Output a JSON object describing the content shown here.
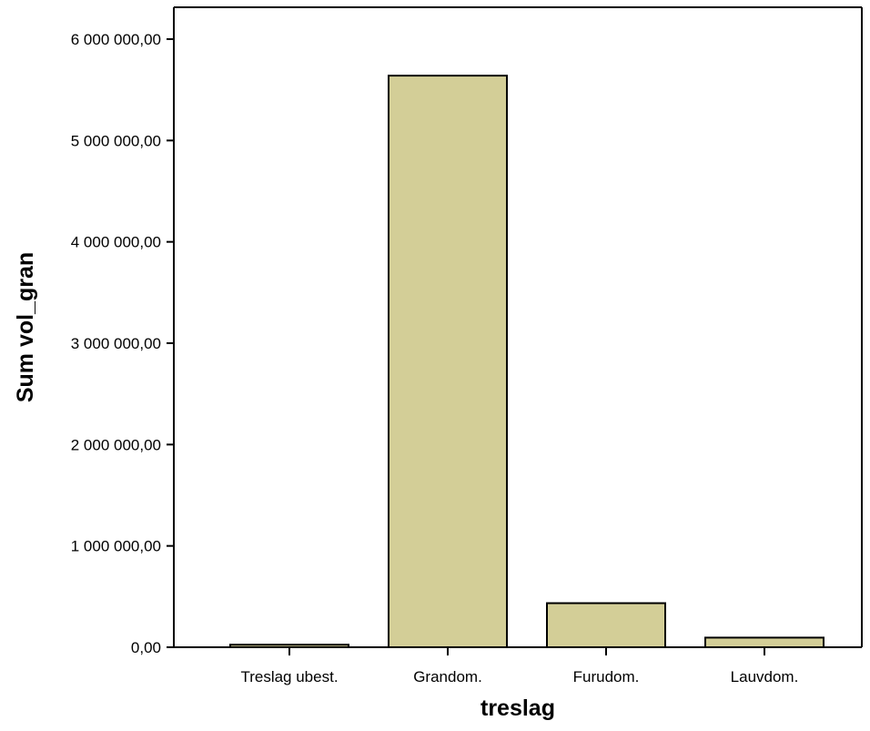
{
  "chart_data": {
    "type": "bar",
    "title": "",
    "xlabel": "treslag",
    "ylabel": "Sum vol_gran",
    "categories": [
      "Treslag ubest.",
      "Grandom.",
      "Furudom.",
      "Lauvdom."
    ],
    "values": [
      25000,
      5640000,
      435000,
      95000
    ],
    "ylim": [
      0,
      6000000
    ],
    "yticks": [
      0,
      1000000,
      2000000,
      3000000,
      4000000,
      5000000,
      6000000
    ],
    "ytick_labels": [
      "0,00",
      "1 000 000,00",
      "2 000 000,00",
      "3 000 000,00",
      "4 000 000,00",
      "5 000 000,00",
      "6 000 000,00"
    ],
    "bar_color": "#d3ce97",
    "bar_edge_color": "#000000",
    "grid": false,
    "legend": "none"
  }
}
